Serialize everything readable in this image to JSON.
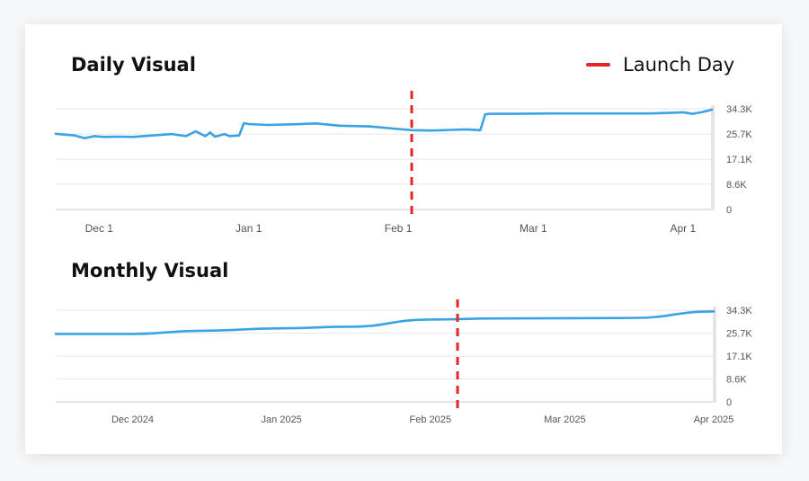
{
  "legend": {
    "label": "Launch Day",
    "color": "#e82525"
  },
  "colors": {
    "line": "#3aa3e3",
    "grid": "#e6e6e6",
    "marker": "#e82525",
    "tick": "#555555"
  },
  "chart_data": [
    {
      "type": "line",
      "title": "Daily Visual",
      "x_tick_labels": [
        "Dec 1",
        "Jan 1",
        "Feb 1",
        "Mar 1",
        "Apr 1"
      ],
      "y_tick_labels": [
        "34.3K",
        "25.7K",
        "17.1K",
        "8.6K",
        "0"
      ],
      "y_ticks": [
        34300,
        25700,
        17100,
        8600,
        0
      ],
      "ylim": [
        0,
        34300
      ],
      "grid": true,
      "y_axis_side": "right",
      "marker_label": "Launch Day",
      "marker_date": "2025-02-04",
      "series": [
        {
          "x": [
            "2024-11-22",
            "2024-11-26",
            "2024-11-28",
            "2024-11-30",
            "2024-12-02",
            "2024-12-05",
            "2024-12-08",
            "2024-12-12",
            "2024-12-16",
            "2024-12-19",
            "2024-12-21",
            "2024-12-23",
            "2024-12-24",
            "2024-12-25",
            "2024-12-27",
            "2024-12-28",
            "2024-12-30",
            "2024-12-31",
            "2025-01-01",
            "2025-01-05",
            "2025-01-10",
            "2025-01-15",
            "2025-01-20",
            "2025-01-26",
            "2025-02-01",
            "2025-02-04",
            "2025-02-08",
            "2025-02-12",
            "2025-02-15",
            "2025-02-18",
            "2025-02-19",
            "2025-02-20",
            "2025-02-25",
            "2025-03-05",
            "2025-03-15",
            "2025-03-25",
            "2025-03-29",
            "2025-04-01",
            "2025-04-03",
            "2025-04-05",
            "2025-04-07"
          ],
          "values": [
            25800,
            25200,
            24300,
            25000,
            24700,
            24800,
            24700,
            25200,
            25700,
            25000,
            26600,
            25000,
            26200,
            24800,
            25700,
            25000,
            25200,
            29400,
            29100,
            28800,
            29000,
            29300,
            28500,
            28300,
            27400,
            27000,
            26900,
            27100,
            27300,
            27000,
            32400,
            32600,
            32600,
            32700,
            32700,
            32700,
            32900,
            33100,
            32600,
            33200,
            34000
          ]
        }
      ]
    },
    {
      "type": "line",
      "title": "Monthly Visual",
      "x_tick_labels": [
        "Dec 2024",
        "Jan 2025",
        "Feb 2025",
        "Mar 2025",
        "Apr 2025"
      ],
      "y_tick_labels": [
        "34.3K",
        "25.7K",
        "17.1K",
        "8.6K",
        "0"
      ],
      "y_ticks": [
        34300,
        25700,
        17100,
        8600,
        0
      ],
      "ylim": [
        0,
        34300
      ],
      "grid": true,
      "y_axis_side": "right",
      "marker_label": "Launch Day",
      "marker_date": "2025-02-04",
      "series": [
        {
          "x": [
            "2024-11-15",
            "2024-12-01",
            "2024-12-15",
            "2025-01-01",
            "2025-01-15",
            "2025-02-01",
            "2025-02-15",
            "2025-03-01",
            "2025-03-15",
            "2025-04-01"
          ],
          "values": [
            25400,
            25400,
            26600,
            27500,
            28100,
            30800,
            31200,
            31300,
            31400,
            33800
          ]
        }
      ]
    }
  ]
}
